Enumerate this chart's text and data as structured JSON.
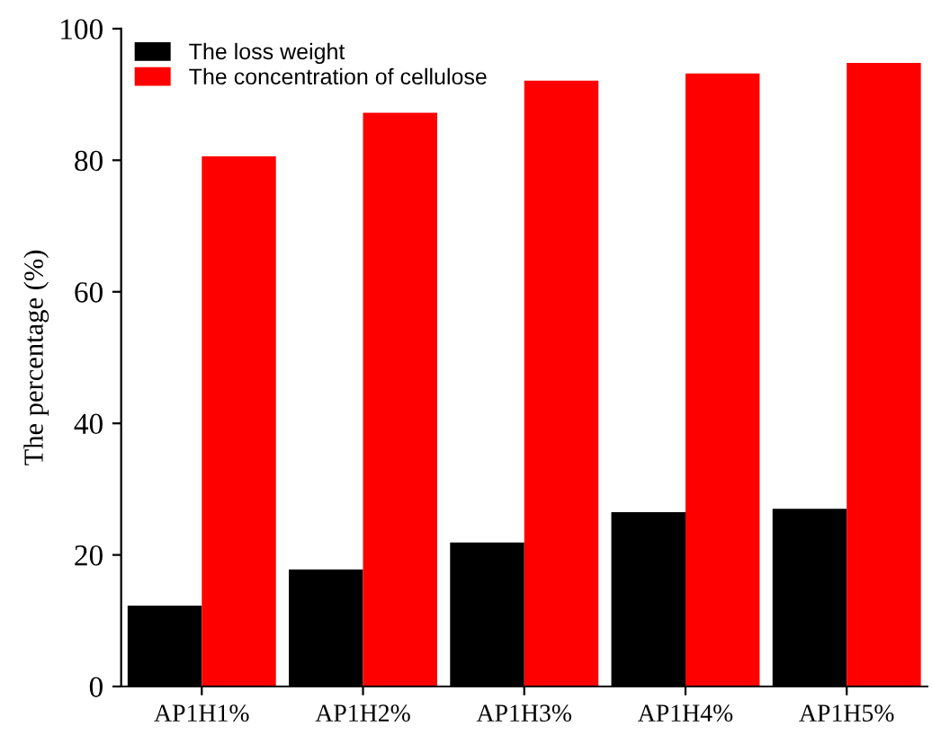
{
  "chart_data": {
    "type": "bar",
    "ylabel": "The percentage (%)",
    "categories": [
      "AP1H1%",
      "AP1H2%",
      "AP1H3%",
      "AP1H4%",
      "AP1H5%"
    ],
    "series": [
      {
        "name": "The loss weight",
        "color": "#000000",
        "values": [
          12.3,
          17.8,
          21.9,
          26.5,
          27.0
        ]
      },
      {
        "name": "The concentration of cellulose",
        "color": "#ff0000",
        "values": [
          80.6,
          87.2,
          92.1,
          93.2,
          94.8
        ]
      }
    ],
    "ylim": [
      0,
      100
    ],
    "yticks": [
      0,
      20,
      40,
      60,
      80,
      100
    ],
    "legend": "top left",
    "grid": false
  }
}
